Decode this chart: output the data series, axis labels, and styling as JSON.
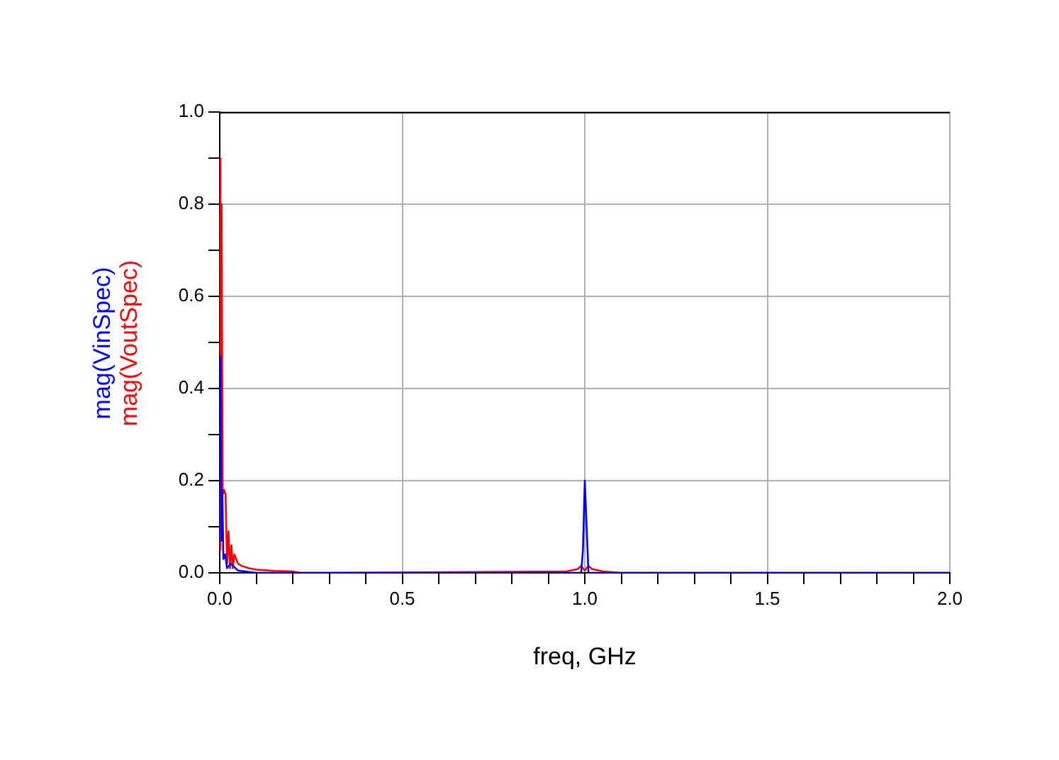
{
  "chart_data": {
    "type": "line",
    "xlabel": "freq, GHz",
    "legend": false,
    "grid": true,
    "marker": "none",
    "line_style": "solid",
    "xlim": [
      0,
      2
    ],
    "ylim": [
      0,
      1
    ],
    "xticks": [
      {
        "value": 0,
        "label": "0.0"
      },
      {
        "value": 0.1,
        "label": null
      },
      {
        "value": 0.2,
        "label": null
      },
      {
        "value": 0.3,
        "label": null
      },
      {
        "value": 0.4,
        "label": null
      },
      {
        "value": 0.5,
        "label": "0.5"
      },
      {
        "value": 0.6,
        "label": null
      },
      {
        "value": 0.7,
        "label": null
      },
      {
        "value": 0.8,
        "label": null
      },
      {
        "value": 0.9,
        "label": null
      },
      {
        "value": 1,
        "label": "1.0"
      },
      {
        "value": 1.1,
        "label": null
      },
      {
        "value": 1.2,
        "label": null
      },
      {
        "value": 1.3,
        "label": null
      },
      {
        "value": 1.4,
        "label": null
      },
      {
        "value": 1.5,
        "label": "1.5"
      },
      {
        "value": 1.6,
        "label": null
      },
      {
        "value": 1.7,
        "label": null
      },
      {
        "value": 1.8,
        "label": null
      },
      {
        "value": 1.9,
        "label": null
      },
      {
        "value": 2,
        "label": "2.0"
      }
    ],
    "yticks": [
      {
        "value": 0,
        "label": "0.0"
      },
      {
        "value": 0.1,
        "label": null
      },
      {
        "value": 0.2,
        "label": "0.2"
      },
      {
        "value": 0.3,
        "label": null
      },
      {
        "value": 0.4,
        "label": "0.4"
      },
      {
        "value": 0.5,
        "label": null
      },
      {
        "value": 0.6,
        "label": "0.6"
      },
      {
        "value": 0.7,
        "label": null
      },
      {
        "value": 0.8,
        "label": "0.8"
      },
      {
        "value": 0.9,
        "label": null
      },
      {
        "value": 1,
        "label": "1.0"
      }
    ],
    "series": [
      {
        "name": "mag(VoutSpec)",
        "color": "#ff0000",
        "x": [
          0,
          0.001,
          0.003,
          0.005,
          0.008,
          0.012,
          0.016,
          0.02,
          0.024,
          0.028,
          0.032,
          0.036,
          0.04,
          0.05,
          0.06,
          0.08,
          0.1,
          0.15,
          0.2,
          0.22,
          0.3,
          0.95,
          0.98,
          0.99,
          1.0,
          1.01,
          1.02,
          1.05,
          1.1,
          2.0
        ],
        "values": [
          0.05,
          0.9,
          0.4,
          0.8,
          0.17,
          0.18,
          0.17,
          0.02,
          0.09,
          0.01,
          0.06,
          0.01,
          0.04,
          0.02,
          0.015,
          0.01,
          0.007,
          0.004,
          0.003,
          0,
          0,
          0.003,
          0.008,
          0.015,
          0.005,
          0.015,
          0.008,
          0.003,
          0,
          0
        ]
      },
      {
        "name": "mag(VinSpec)",
        "color": "#0000ff",
        "x": [
          0,
          0.002,
          0.004,
          0.007,
          0.01,
          0.015,
          0.02,
          0.03,
          0.05,
          0.1,
          0.99,
          0.995,
          1.0,
          1.005,
          1.01,
          2.0
        ],
        "values": [
          0.2,
          0.47,
          0.07,
          0.18,
          0.03,
          0.04,
          0.01,
          0.02,
          0.005,
          0,
          0,
          0.05,
          0.2,
          0.1,
          0,
          0
        ]
      }
    ]
  }
}
